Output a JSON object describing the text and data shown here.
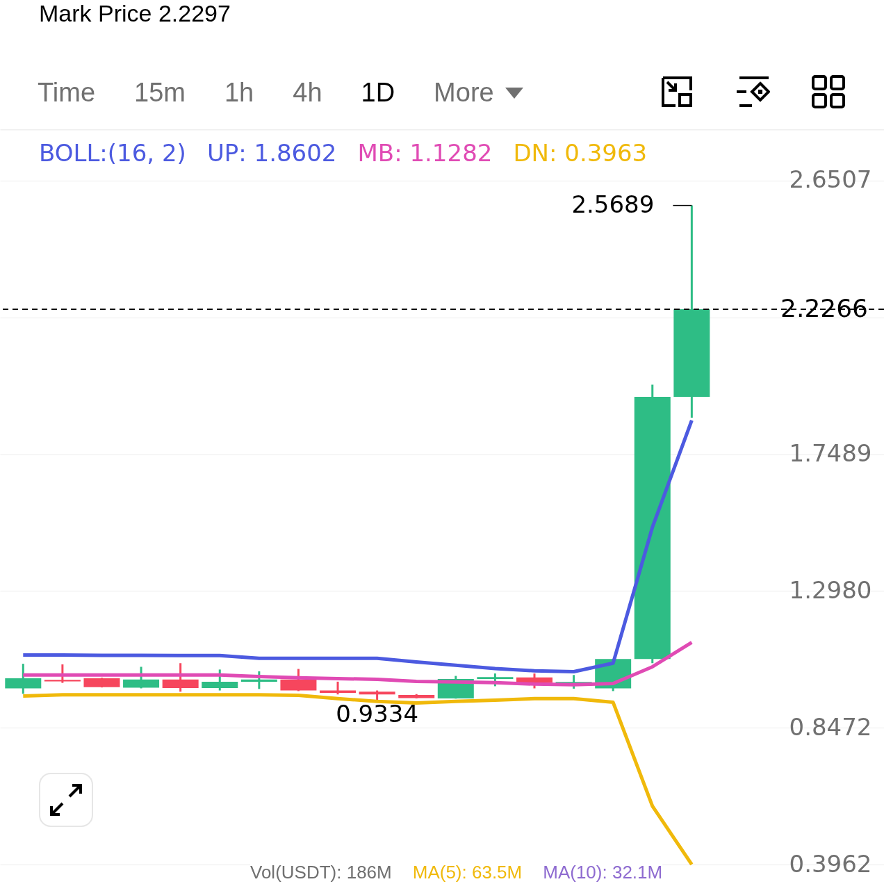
{
  "chart_data": {
    "type": "candlestick",
    "title": "Mark Price 2.2297",
    "legend_title": "BOLL:(16, 2)",
    "legend": "top",
    "grid": true,
    "categories": [
      null,
      null,
      null,
      null,
      null,
      null,
      null,
      null,
      null,
      null,
      null,
      null,
      null,
      null,
      null,
      null,
      null,
      null
    ],
    "ohlc": [
      [
        0.977,
        1.058,
        0.959,
        1.01
      ],
      [
        1.005,
        1.056,
        0.995,
        1.0
      ],
      [
        1.01,
        1.012,
        0.98,
        0.981
      ],
      [
        0.979,
        1.048,
        0.977,
        1.006
      ],
      [
        1.006,
        1.06,
        0.966,
        0.978
      ],
      [
        0.978,
        1.039,
        0.97,
        0.999
      ],
      [
        0.999,
        1.033,
        0.975,
        1.006
      ],
      [
        1.006,
        1.041,
        0.968,
        0.97
      ],
      [
        0.97,
        0.999,
        0.957,
        0.962
      ],
      [
        0.966,
        0.97,
        0.9334,
        0.957
      ],
      [
        0.955,
        0.958,
        0.944,
        0.945
      ],
      [
        0.944,
        1.018,
        0.943,
        1.008
      ],
      [
        1.008,
        1.026,
        0.984,
        1.014
      ],
      [
        1.013,
        1.026,
        0.977,
        0.995
      ],
      [
        0.994,
        1.021,
        0.976,
        0.998
      ],
      [
        0.977,
        1.074,
        0.968,
        1.074
      ],
      [
        1.074,
        1.978,
        1.06,
        1.938
      ],
      [
        1.938,
        2.5689,
        1.869,
        2.2266
      ]
    ],
    "colors": [
      "#2ebd85",
      "#f6465d",
      "#f6465d",
      "#2ebd85",
      "#f6465d",
      "#2ebd85",
      "#2ebd85",
      "#f6465d",
      "#f6465d",
      "#f6465d",
      "#f6465d",
      "#2ebd85",
      "#2ebd85",
      "#f6465d",
      "#2ebd85",
      "#2ebd85",
      "#2ebd85",
      "#2ebd85"
    ],
    "series": [
      {
        "name": "UP: 1.8602",
        "color": "#4c5ae0",
        "type": "line",
        "values": [
          1.087,
          1.087,
          1.086,
          1.086,
          1.085,
          1.085,
          1.076,
          1.076,
          1.076,
          1.076,
          1.064,
          1.053,
          1.042,
          1.035,
          1.032,
          1.06,
          1.508,
          1.8602
        ]
      },
      {
        "name": "MB: 1.1282",
        "color": "#e04bb4",
        "type": "line",
        "values": [
          1.021,
          1.021,
          1.021,
          1.021,
          1.021,
          1.021,
          1.016,
          1.012,
          1.009,
          1.007,
          1.0,
          0.998,
          0.996,
          0.991,
          0.989,
          0.993,
          1.048,
          1.1282
        ]
      },
      {
        "name": "DN: 0.3963",
        "color": "#f0b90b",
        "type": "line",
        "values": [
          0.952,
          0.956,
          0.956,
          0.956,
          0.956,
          0.956,
          0.956,
          0.954,
          0.943,
          0.934,
          0.929,
          0.934,
          0.938,
          0.943,
          0.943,
          0.931,
          0.589,
          0.3963
        ]
      }
    ],
    "ylim": [
      0.3962,
      2.82
    ],
    "yticks": [
      0.3962,
      0.8472,
      {
        "value": 1.298,
        "label": "1.2980"
      },
      1.7489,
      {
        "value": 2.1998,
        "label": null
      },
      2.6507
    ],
    "ref_lines": [
      {
        "axis": "y",
        "value": 2.2266,
        "label": "2.2266",
        "line_style": "dashed",
        "color": "#000000"
      }
    ],
    "annotations": [
      "Time",
      "15m",
      "1h",
      "4h",
      "1D",
      "More",
      "Vol(USDT): 186M",
      "MA(5): 63.5M",
      "MA(10): 32.1M",
      "2.5689",
      "0.9334"
    ]
  }
}
